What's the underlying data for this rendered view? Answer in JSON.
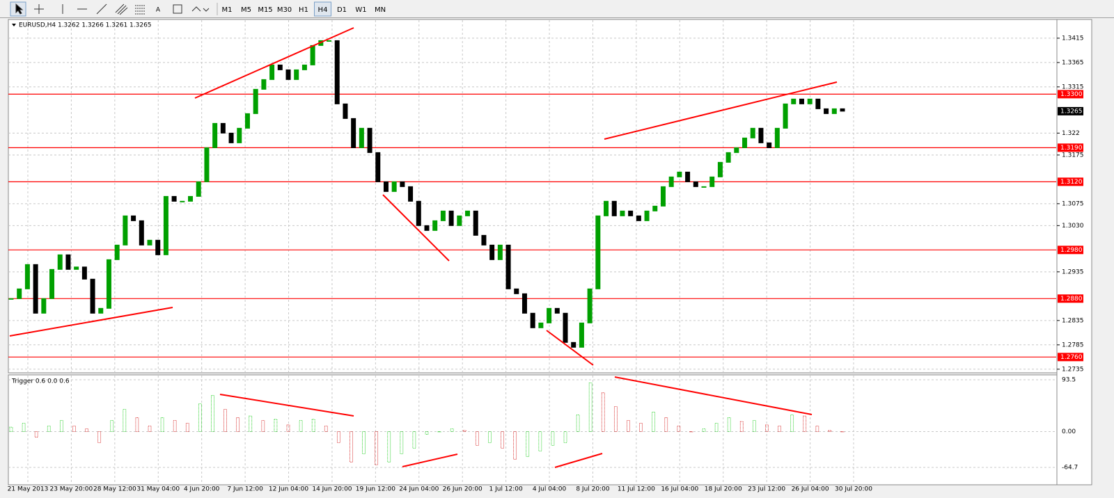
{
  "toolbar": {
    "timeframes": [
      "M1",
      "M5",
      "M15",
      "M30",
      "H1",
      "H4",
      "D1",
      "W1",
      "MN"
    ],
    "active": "H4"
  },
  "chart_data": [
    {
      "type": "candlestick",
      "title": "EURUSD,H4 1.3262 1.3266 1.3261 1.3265",
      "ylim": [
        1.2729,
        1.3452
      ],
      "yticks": [
        1.3415,
        1.3365,
        1.3315,
        1.322,
        {
          "value": 1.3175,
          "label": "1.3175"
        },
        {
          "value": 1.3075,
          "label": "1.3075"
        },
        {
          "value": 1.303,
          "label": "1.3030"
        },
        {
          "value": 1.2935,
          "label": "1.2935"
        },
        {
          "value": 1.2835,
          "label": "1.2835"
        },
        {
          "value": 1.2785,
          "label": "1.2785"
        },
        {
          "value": 1.2735,
          "label": "1.2735"
        }
      ],
      "levels": [
        {
          "value": 1.33,
          "label": "1.3300"
        },
        {
          "value": 1.319,
          "label": "1.3190"
        },
        {
          "value": 1.312,
          "label": "1.3120"
        },
        {
          "value": 1.298,
          "label": "1.2980"
        },
        {
          "value": 1.288,
          "label": "1.2880"
        },
        {
          "value": 1.276,
          "label": "1.2760"
        }
      ],
      "current_price": 1.3265,
      "values": [
        1.288,
        1.29,
        1.295,
        1.285,
        1.288,
        1.294,
        1.297,
        1.294,
        1.2945,
        1.292,
        1.285,
        1.286,
        1.296,
        1.299,
        1.305,
        1.304,
        1.299,
        1.3,
        1.297,
        1.309,
        1.308,
        1.308,
        1.309,
        1.312,
        1.319,
        1.324,
        1.322,
        1.32,
        1.323,
        1.326,
        1.331,
        1.333,
        1.336,
        1.335,
        1.333,
        1.335,
        1.336,
        1.34,
        1.341,
        1.341,
        1.328,
        1.325,
        1.319,
        1.323,
        1.318,
        1.312,
        1.31,
        1.312,
        1.311,
        1.308,
        1.303,
        1.302,
        1.304,
        1.306,
        1.303,
        1.305,
        1.306,
        1.301,
        1.299,
        1.296,
        1.299,
        1.29,
        1.289,
        1.285,
        1.282,
        1.283,
        1.286,
        1.285,
        1.279,
        1.278,
        1.283,
        1.29,
        1.305,
        1.308,
        1.305,
        1.306,
        1.305,
        1.304,
        1.306,
        1.307,
        1.311,
        1.313,
        1.314,
        1.312,
        1.311,
        1.311,
        1.313,
        1.316,
        1.318,
        1.319,
        1.321,
        1.323,
        1.32,
        1.319,
        1.323,
        1.328,
        1.329,
        1.328,
        1.329,
        1.327,
        1.326,
        1.327,
        1.3265
      ],
      "up_color": "#00a000",
      "down_color": "#000000",
      "level_color": "#ff0000",
      "grid": true
    },
    {
      "type": "histogram",
      "title": "Trigger 0.6 0.0 0.6",
      "ylim": [
        -94.8,
        101
      ],
      "yticks": [
        93.5,
        {
          "value": 0,
          "label": "0.00"
        },
        -64.7
      ],
      "values": [
        8,
        15,
        -10,
        10,
        20,
        10,
        5,
        -20,
        20,
        40,
        25,
        10,
        25,
        20,
        15,
        50,
        65,
        40,
        25,
        28,
        20,
        22,
        12,
        20,
        22,
        10,
        -20,
        -55,
        -40,
        -60,
        -55,
        -40,
        -30,
        -5,
        0,
        5,
        2,
        -25,
        -20,
        -30,
        -50,
        -45,
        -35,
        -25,
        -20,
        30,
        88,
        70,
        45,
        20,
        15,
        35,
        25,
        10,
        0,
        5,
        15,
        25,
        18,
        20,
        12,
        10,
        30,
        28,
        10,
        2,
        0
      ],
      "categories": [
        "21 May 2013",
        "23 May 20:00",
        "28 May 12:00",
        "31 May 04:00",
        "4 Jun 20:00",
        "7 Jun 12:00",
        "12 Jun 04:00",
        "14 Jun 20:00",
        "19 Jun 12:00",
        "24 Jun 04:00",
        "26 Jun 20:00",
        "1 Jul 12:00",
        "4 Jul 04:00",
        "8 Jul 20:00",
        "11 Jul 12:00",
        "16 Jul 04:00",
        "18 Jul 20:00",
        "23 Jul 12:00",
        "26 Jul 04:00",
        "30 Jul 20:00"
      ],
      "up_color": "#00c800",
      "down_color": "#d00000"
    }
  ]
}
